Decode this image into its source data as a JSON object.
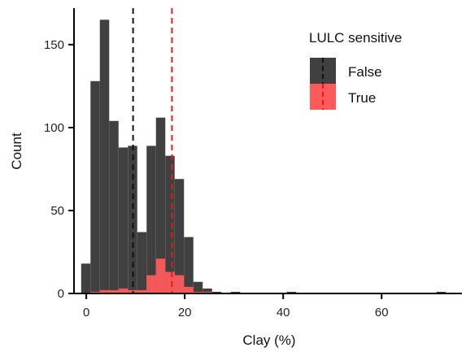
{
  "chart_data": {
    "type": "histogram",
    "xlabel": "Clay (%)",
    "ylabel": "Count",
    "xlim": [
      -2.5,
      75
    ],
    "ylim": [
      0,
      172
    ],
    "x_ticks": [
      0,
      20,
      40,
      60
    ],
    "y_ticks": [
      0,
      50,
      100,
      150
    ],
    "bin_width": 1.9,
    "bin_start": -1.05,
    "legend": {
      "title": "LULC sensitive",
      "placement": "top-right",
      "entries": [
        "False",
        "True"
      ]
    },
    "series": [
      {
        "name": "False",
        "color": "#404040",
        "counts": [
          18,
          128,
          165,
          104,
          88,
          89,
          37,
          89,
          106,
          83,
          69,
          34,
          7,
          3,
          1,
          0,
          1,
          0,
          0,
          0,
          0,
          0,
          1,
          0,
          0,
          0,
          0,
          0,
          0,
          0,
          0,
          0,
          0,
          0,
          0,
          0,
          0,
          0,
          1
        ]
      },
      {
        "name": "True",
        "color": "#ff5a5a",
        "counts": [
          0,
          1,
          2,
          2,
          3,
          2,
          2,
          11,
          21,
          13,
          11,
          4,
          1,
          1,
          0,
          0,
          0,
          0,
          0,
          0,
          0,
          0,
          0,
          0,
          0,
          0,
          0,
          0,
          0,
          0,
          0,
          0,
          0,
          0,
          0,
          0,
          0,
          0,
          0
        ]
      }
    ],
    "reference_lines": [
      {
        "series": "False",
        "x": 9.5,
        "color": "#111111",
        "style": "dashed"
      },
      {
        "series": "True",
        "x": 17.4,
        "color": "#e31a1c",
        "style": "dashed"
      }
    ]
  }
}
